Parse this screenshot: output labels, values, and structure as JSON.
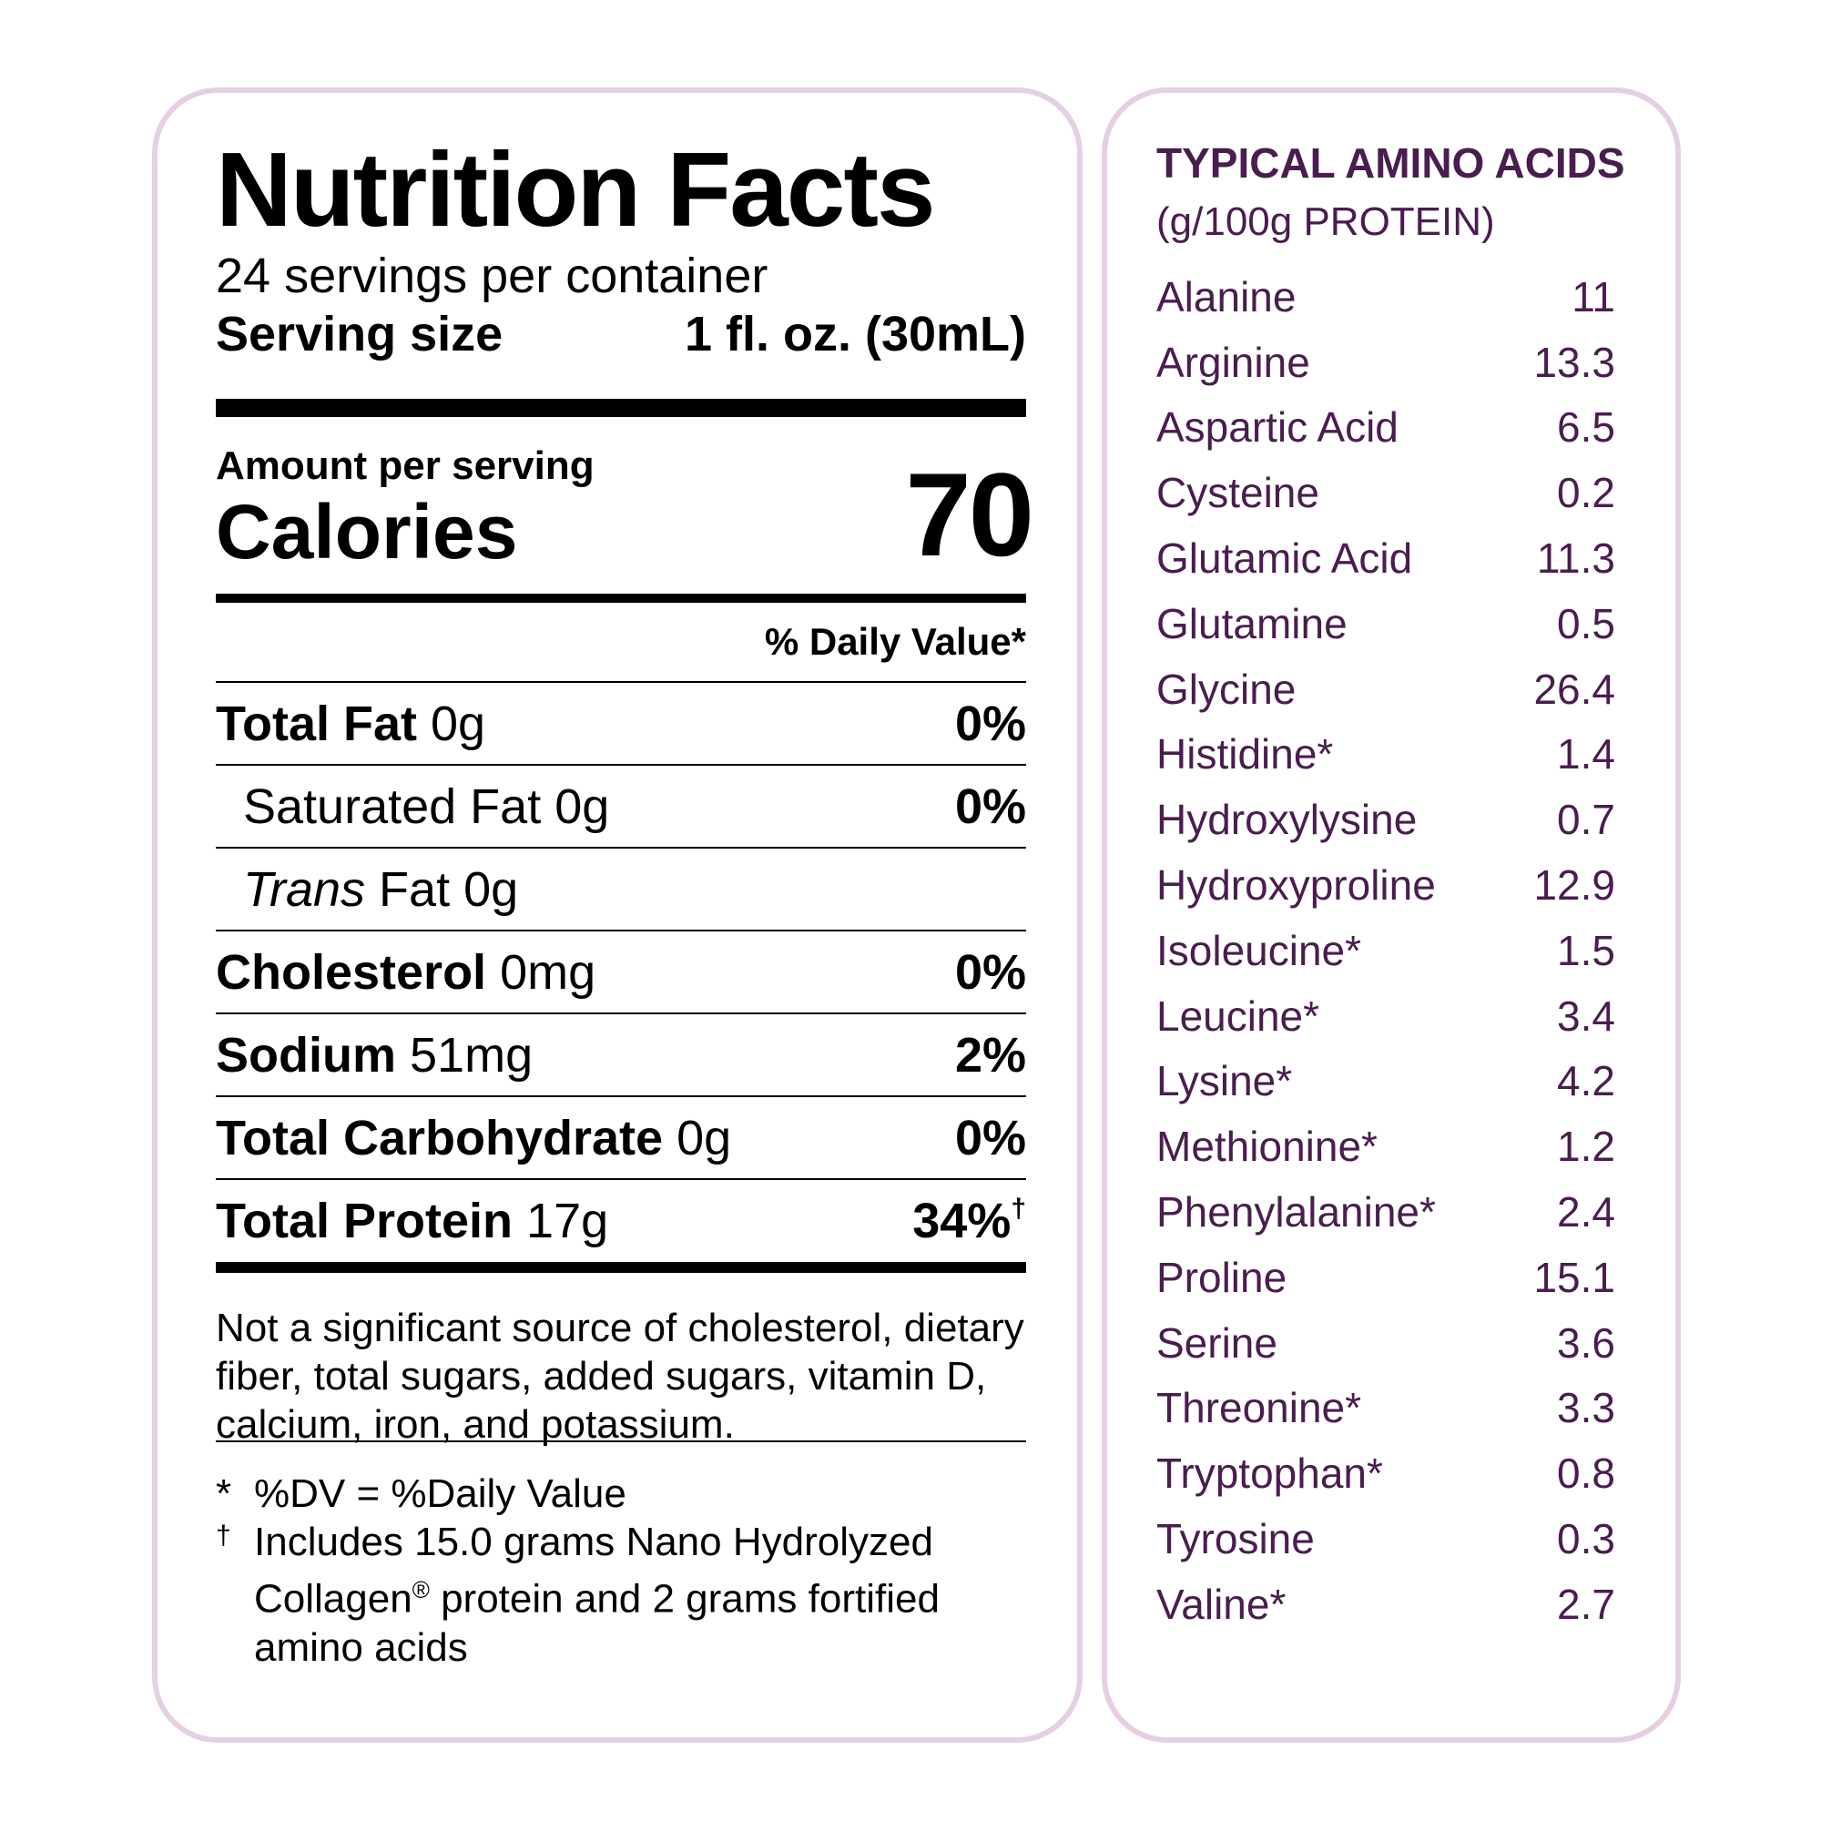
{
  "nutrition_facts": {
    "title": "Nutrition Facts",
    "servings_per_container": "24 servings per container",
    "serving_size_label": "Serving size",
    "serving_size_value": "1 fl. oz. (30mL)",
    "amount_per_serving": "Amount per serving",
    "calories_label": "Calories",
    "calories_value": "70",
    "daily_value_header": "% Daily Value*",
    "rows": [
      {
        "name": "Total Fat",
        "amount": "0g",
        "dv": "0%",
        "dagger": ""
      },
      {
        "name": "Saturated Fat",
        "amount": "0g",
        "dv": "0%",
        "dagger": ""
      },
      {
        "name": "Trans",
        "amount": "Fat 0g",
        "dv": "",
        "dagger": ""
      },
      {
        "name": "Cholesterol",
        "amount": "0mg",
        "dv": "0%",
        "dagger": ""
      },
      {
        "name": "Sodium",
        "amount": "51mg",
        "dv": "2%",
        "dagger": ""
      },
      {
        "name": "Total Carbohydrate",
        "amount": "0g",
        "dv": "0%",
        "dagger": ""
      },
      {
        "name": "Total Protein",
        "amount": "17g",
        "dv": "34%",
        "dagger": "†"
      }
    ],
    "note": "Not a significant source of cholesterol, dietary fiber, total sugars, added sugars, vitamin D, calcium, iron, and potassium.",
    "footnotes": [
      {
        "symbol": "*",
        "text": "%DV = %Daily Value"
      },
      {
        "symbol": "†",
        "text": "Includes 15.0 grams Nano Hydrolyzed Collagen",
        "reg": "®",
        "text_after": " protein and 2 grams fortified amino acids"
      }
    ]
  },
  "amino_acids": {
    "title": "TYPICAL AMINO ACIDS",
    "subtitle": "(g/100g PROTEIN)",
    "items": [
      {
        "name": "Alanine",
        "value": "11"
      },
      {
        "name": "Arginine",
        "value": "13.3"
      },
      {
        "name": "Aspartic Acid",
        "value": "6.5"
      },
      {
        "name": "Cysteine",
        "value": "0.2"
      },
      {
        "name": "Glutamic Acid",
        "value": "11.3"
      },
      {
        "name": "Glutamine",
        "value": "0.5"
      },
      {
        "name": "Glycine",
        "value": "26.4"
      },
      {
        "name": "Histidine*",
        "value": "1.4"
      },
      {
        "name": "Hydroxylysine",
        "value": "0.7"
      },
      {
        "name": "Hydroxyproline",
        "value": "12.9"
      },
      {
        "name": "Isoleucine*",
        "value": "1.5"
      },
      {
        "name": "Leucine*",
        "value": "3.4"
      },
      {
        "name": "Lysine*",
        "value": "4.2"
      },
      {
        "name": "Methionine*",
        "value": "1.2"
      },
      {
        "name": "Phenylalanine*",
        "value": "2.4"
      },
      {
        "name": "Proline",
        "value": "15.1"
      },
      {
        "name": "Serine",
        "value": "3.6"
      },
      {
        "name": "Threonine*",
        "value": "3.3"
      },
      {
        "name": "Tryptophan*",
        "value": "0.8"
      },
      {
        "name": "Tyrosine",
        "value": "0.3"
      },
      {
        "name": "Valine*",
        "value": "2.7"
      }
    ]
  },
  "colors": {
    "panel_border": "#e6cfe5",
    "amino_text": "#4a1d4f"
  }
}
